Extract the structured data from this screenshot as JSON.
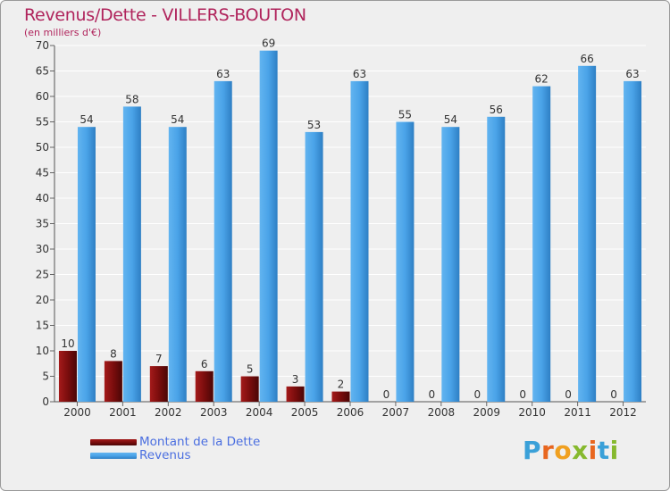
{
  "title": "Revenus/Dette - VILLERS-BOUTON",
  "subtitle": "(en milliers d'€)",
  "logo": {
    "letters": [
      "P",
      "r",
      "o",
      "x",
      "i",
      "t",
      "i"
    ],
    "colors": [
      "#3aa0d8",
      "#e8661f",
      "#f0a020",
      "#86b92e",
      "#e8661f",
      "#3aa0d8",
      "#86b92e"
    ]
  },
  "colors": {
    "dette": "#7a0d0d",
    "revenus": "#4aa3e8",
    "text": "#333333",
    "grid": "#ffffff",
    "accent": "#b0245c",
    "legend_text": "#4a6ee0"
  },
  "chart_data": {
    "type": "bar",
    "title": "Revenus/Dette - VILLERS-BOUTON",
    "ylabel": "(en milliers d'€)",
    "ylim": [
      0,
      70
    ],
    "yticks": [
      0,
      5,
      10,
      15,
      20,
      25,
      30,
      35,
      40,
      45,
      50,
      55,
      60,
      65,
      70
    ],
    "categories": [
      "2000",
      "2001",
      "2002",
      "2003",
      "2004",
      "2005",
      "2006",
      "2007",
      "2008",
      "2009",
      "2010",
      "2011",
      "2012"
    ],
    "series": [
      {
        "name": "Montant de la Dette",
        "values": [
          10,
          8,
          7,
          6,
          5,
          3,
          2,
          0,
          0,
          0,
          0,
          0,
          0
        ]
      },
      {
        "name": "Revenus",
        "values": [
          54,
          58,
          54,
          63,
          69,
          53,
          63,
          55,
          54,
          56,
          62,
          66,
          63
        ]
      }
    ],
    "legend_position": "bottom-left"
  }
}
